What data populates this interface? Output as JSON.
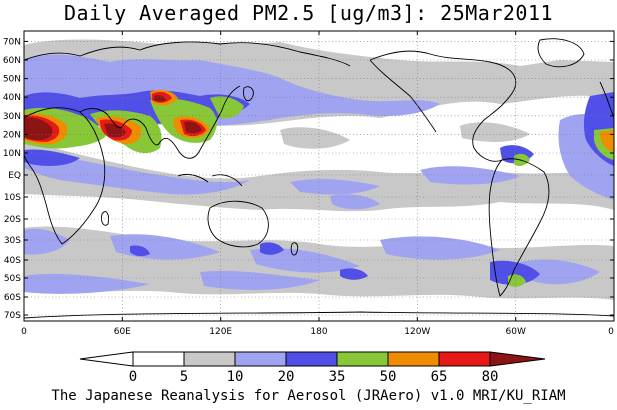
{
  "title": "Daily Averaged PM2.5 [ug/m3]: 25Mar2011",
  "footer": "The Japanese Reanalysis for Aerosol (JRAero) v1.0 MRI/KU_RIAM",
  "lat_labels": [
    "70N",
    "60N",
    "50N",
    "40N",
    "30N",
    "20N",
    "10N",
    "EQ",
    "10S",
    "20S",
    "30S",
    "40S",
    "50S",
    "60S",
    "70S"
  ],
  "lon_labels": [
    "0",
    "60E",
    "120E",
    "180",
    "120W",
    "60W",
    "0"
  ],
  "colorbar": {
    "levels": [
      "0",
      "5",
      "10",
      "20",
      "35",
      "50",
      "65",
      "80"
    ],
    "colors": [
      "#ffffff",
      "#ffffff",
      "#c8c8c8",
      "#a0a4f0",
      "#5050e8",
      "#88c838",
      "#f08c00",
      "#e81818",
      "#8c1414"
    ]
  },
  "colors": {
    "gray": "#c8c8c8",
    "light_blue": "#a0a4f0",
    "blue": "#5050e8",
    "green": "#88c838",
    "orange": "#f08c00",
    "red": "#e81818",
    "dark_red": "#8c1414"
  }
}
